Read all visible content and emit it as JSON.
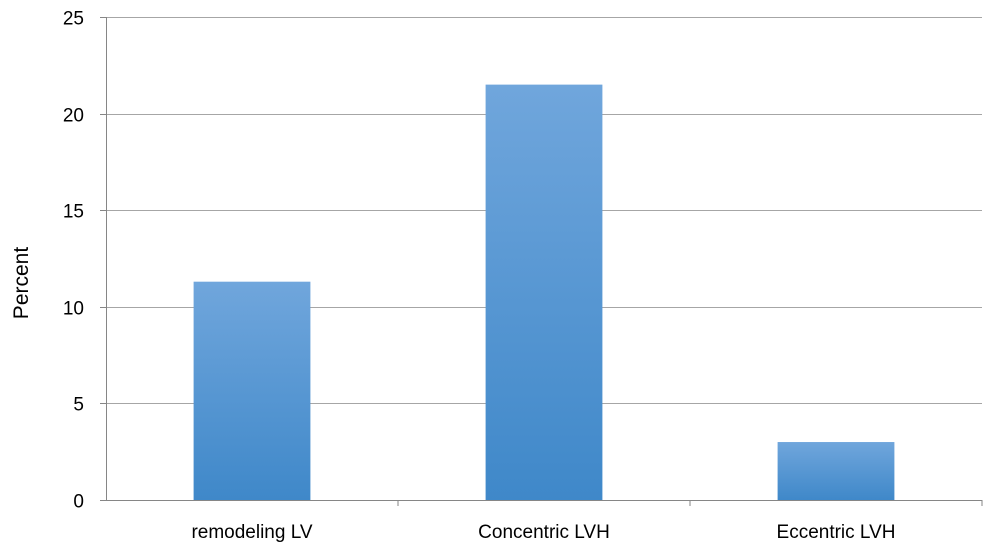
{
  "chart_data": {
    "type": "bar",
    "title": "",
    "xlabel": "",
    "ylabel": "Percent",
    "categories": [
      "remodeling LV",
      "Concentric LVH",
      "Eccentric LVH"
    ],
    "values": [
      11.3,
      21.5,
      3.0
    ],
    "ylim": [
      0,
      25
    ],
    "yticks": [
      0,
      5,
      10,
      15,
      20,
      25
    ],
    "grid": true,
    "legend": "none",
    "colors": {
      "bar_top": "#70a6dc",
      "bar_bottom": "#3f88c9",
      "grid": "#a6a6a6",
      "axis": "#868686",
      "text": "#000000"
    }
  }
}
